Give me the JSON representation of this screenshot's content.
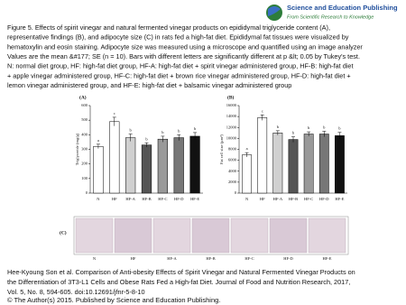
{
  "header": {
    "publisher": "Science and Education Publishing",
    "tagline": "From Scientific Research to Knowledge"
  },
  "caption": [
    "Figure 5. Effects of spirit vinegar and natural fermented vinegar products on epididymal triglyceride content (A),",
    "representative findings (B), and adipocyte size (C) in rats fed a high-fat diet. Epididymal fat tissues were visualized by",
    "hematoxylin and eosin staining. Adipocyte size was measured using a microscope and quantified using an image analyzer",
    "Values are the mean &#177; SE (n = 10). Bars with different letters are significantly different at p &lt; 0.05 by Tukey's test.",
    "N: normal diet group, HF: high-fat diet group, HF-A: high-fat diet + spirit vinegar administered group, HF-B: high-fat diet",
    "+ apple vinegar administered group, HF-C: high-fat diet + brown rice vinegar administered group, HF-D: high-fat diet +",
    "lemon vinegar administered group, and HF-E: high-fat diet + balsamic vinegar administered group"
  ],
  "chart_data": [
    {
      "type": "bar",
      "panel": "(A)",
      "y_label": "Triglyceride (mg/g)",
      "categories": [
        "N",
        "HF",
        "HF-A",
        "HF-B",
        "HF-C",
        "HF-D",
        "HF-E"
      ],
      "values": [
        320,
        490,
        380,
        330,
        370,
        380,
        390
      ],
      "errors": [
        15,
        30,
        25,
        15,
        20,
        20,
        25
      ],
      "letters": [
        "a",
        "c",
        "b",
        "b",
        "b",
        "b",
        "b"
      ],
      "colors": [
        "#ffffff",
        "#ffffff",
        "#d0d0d0",
        "#555555",
        "#999999",
        "#777777",
        "#111111"
      ],
      "ylim": [
        0,
        600
      ],
      "yticks": [
        0,
        100,
        200,
        300,
        400,
        500,
        600
      ]
    },
    {
      "type": "bar",
      "panel": "(B)",
      "y_label": "Fat cell size (μm²)",
      "categories": [
        "N",
        "HF",
        "HF-A",
        "HF-B",
        "HF-C",
        "HF-D",
        "HF-E"
      ],
      "values": [
        7000,
        13800,
        11000,
        9800,
        10800,
        10800,
        10500
      ],
      "errors": [
        400,
        500,
        400,
        500,
        400,
        500,
        600
      ],
      "letters": [
        "a",
        "c",
        "b",
        "b",
        "b",
        "b",
        "b"
      ],
      "colors": [
        "#ffffff",
        "#ffffff",
        "#d0d0d0",
        "#555555",
        "#999999",
        "#777777",
        "#111111"
      ],
      "ylim": [
        0,
        16000
      ],
      "yticks": [
        0,
        2000,
        4000,
        6000,
        8000,
        10000,
        12000,
        14000,
        16000
      ]
    }
  ],
  "panel_c": {
    "panel": "(C)",
    "labels": [
      "N",
      "HF",
      "HF-A",
      "HF-B",
      "HF-C",
      "HF-D",
      "HF-E"
    ]
  },
  "citation": [
    "Hee-Kyoung Son et al. Comparison of Anti-obesity Effects of Spirit Vinegar and Natural Fermented Vinegar Products on",
    "the Differentiation of 3T3-L1 Cells and Obese Rats Fed a High-fat Diet. Journal of Food and Nutrition Research, 2017,",
    "Vol. 5, No. 8, 594-605. doi:10.12691/jfnr-5-8-10"
  ],
  "copyright": "© The Author(s) 2015. Published by Science and Education Publishing."
}
